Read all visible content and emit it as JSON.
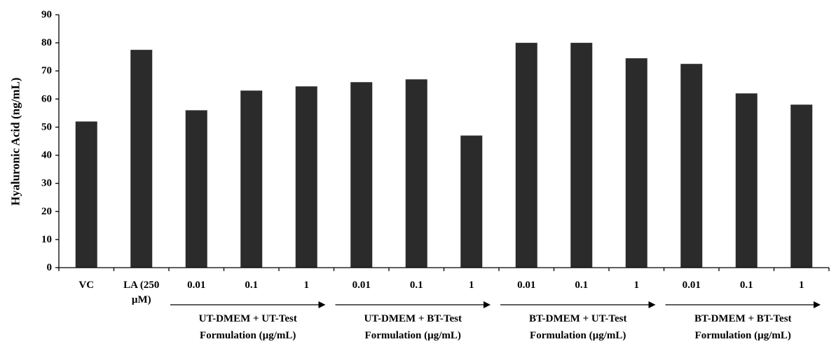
{
  "chart_data": {
    "type": "bar",
    "title": "",
    "xlabel": "",
    "ylabel": "Hyaluronic Acid  (ng/mL)",
    "ylim": [
      0,
      90
    ],
    "yticks": [
      "0",
      "10",
      "20",
      "30",
      "40",
      "50",
      "60",
      "70",
      "80",
      "90"
    ],
    "categories": [
      [
        "VC"
      ],
      [
        "LA (250",
        "µM)"
      ],
      [
        "0.01"
      ],
      [
        "0.1"
      ],
      [
        "1"
      ],
      [
        "0.01"
      ],
      [
        "0.1"
      ],
      [
        "1"
      ],
      [
        "0.01"
      ],
      [
        "0.1"
      ],
      [
        "1"
      ],
      [
        "0.01"
      ],
      [
        "0.1"
      ],
      [
        "1"
      ]
    ],
    "values": [
      52,
      77.5,
      56,
      63,
      64.5,
      66,
      67,
      47,
      80,
      80,
      74.5,
      72.5,
      62,
      58
    ],
    "bar_color": "#2b2b2b",
    "groups": [
      {
        "label": [
          "UT-DMEM + UT-Test",
          "Formulation (µg/mL)"
        ],
        "start": 2,
        "end": 4
      },
      {
        "label": [
          "UT-DMEM + BT-Test",
          "Formulation (µg/mL)"
        ],
        "start": 5,
        "end": 7
      },
      {
        "label": [
          "BT-DMEM + UT-Test",
          "Formulation (µg/mL)"
        ],
        "start": 8,
        "end": 10
      },
      {
        "label": [
          "BT-DMEM + BT-Test",
          "Formulation (µg/mL)"
        ],
        "start": 11,
        "end": 13
      }
    ]
  }
}
